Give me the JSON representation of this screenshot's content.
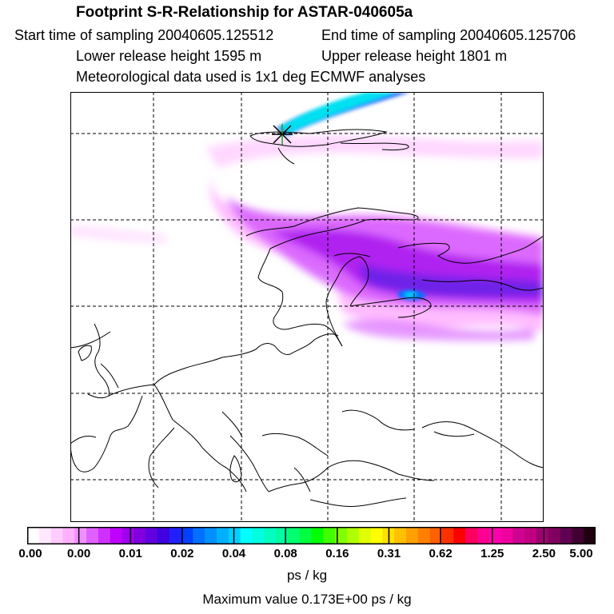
{
  "header": {
    "title": "Footprint S-R-Relationship for ASTAR-040605a",
    "start_time": "Start time of sampling 20040605.125512",
    "end_time": "End time of sampling 20040605.125706",
    "lower_height": "Lower release height 1595 m",
    "upper_height": "Upper release height 1801 m",
    "met_data": "Meteorological data used is 1x1 deg ECMWF analyses"
  },
  "colorbar": {
    "labels": [
      "0.00",
      "0.00",
      "0.01",
      "0.02",
      "0.04",
      "0.08",
      "0.16",
      "0.31",
      "0.62",
      "1.25",
      "2.50",
      "5.00"
    ],
    "colors": [
      "#ffffff",
      "#ffe8ff",
      "#ffccff",
      "#ffb0ff",
      "#f090ff",
      "#e060ff",
      "#d030ff",
      "#c000ff",
      "#a000f0",
      "#8000e0",
      "#6000e0",
      "#4000e0",
      "#2020ff",
      "#0040ff",
      "#0070ff",
      "#0090ff",
      "#00b0ff",
      "#00d0ff",
      "#00ffff",
      "#00ffe0",
      "#00ffc0",
      "#00ffa0",
      "#00ff70",
      "#00ff40",
      "#00ff00",
      "#40ff00",
      "#80ff00",
      "#b0ff00",
      "#e0ff00",
      "#ffff00",
      "#ffe000",
      "#ffc000",
      "#ffa000",
      "#ff8000",
      "#ff6000",
      "#ff3000",
      "#ff0000",
      "#ff0060",
      "#ff0090",
      "#ff00b0",
      "#f000a0",
      "#d00090",
      "#c00080",
      "#a00070",
      "#800060",
      "#600050",
      "#400030",
      "#200010"
    ],
    "unit": "ps / kg",
    "max_value": "Maximum value  0.173E+00 ps / kg"
  }
}
